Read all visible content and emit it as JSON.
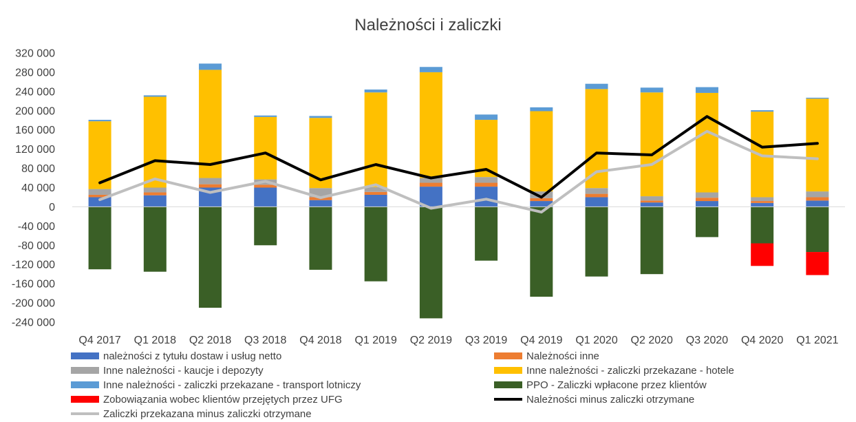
{
  "chart_data": {
    "type": "bar",
    "title": "Należności i zaliczki",
    "xlabel": "",
    "ylabel": "",
    "ylim": [
      -240000,
      320000
    ],
    "ytick_step": 40000,
    "y_tick_labels": [
      "320 000",
      "280 000",
      "240 000",
      "200 000",
      "160 000",
      "120 000",
      "80 000",
      "40 000",
      "0",
      "-40 000",
      "-80 000",
      "-120 000",
      "-160 000",
      "-200 000",
      "-240 000"
    ],
    "grid": false,
    "legend_position": "bottom",
    "categories": [
      "Q4 2017",
      "Q1 2018",
      "Q2 2018",
      "Q3 2018",
      "Q4 2018",
      "Q1 2019",
      "Q2 2019",
      "Q3 2019",
      "Q4 2019",
      "Q1 2020",
      "Q2 2020",
      "Q3 2020",
      "Q4 2020",
      "Q1 2021"
    ],
    "series": [
      {
        "name": "należności z tytułu dostaw i usług netto",
        "kind": "bar",
        "color": "#4472C4",
        "values": [
          20000,
          24000,
          40000,
          40000,
          14000,
          25000,
          42000,
          42000,
          12000,
          20000,
          9000,
          12000,
          8000,
          13000
        ]
      },
      {
        "name": "Należności inne",
        "kind": "bar",
        "color": "#ED7D31",
        "values": [
          5000,
          6000,
          7000,
          6000,
          6000,
          6000,
          8000,
          8000,
          6000,
          7000,
          4000,
          7000,
          4000,
          7000
        ]
      },
      {
        "name": "Inne należności - kaucje i depozyty",
        "kind": "bar",
        "color": "#A5A5A5",
        "values": [
          12000,
          10000,
          13000,
          11000,
          19000,
          10000,
          10000,
          12000,
          14000,
          12000,
          9000,
          11000,
          8000,
          12000
        ]
      },
      {
        "name": "Inne należności - zaliczki przekazane - hotele",
        "kind": "bar",
        "color": "#FFC000",
        "values": [
          141000,
          189000,
          225000,
          130000,
          146000,
          197000,
          220000,
          119000,
          167000,
          206000,
          216000,
          207000,
          178000,
          193000
        ]
      },
      {
        "name": "Inne należności - zaliczki przekazane - transport lotniczy",
        "kind": "bar",
        "color": "#5B9BD5",
        "values": [
          3000,
          3000,
          13000,
          3000,
          4000,
          6000,
          11000,
          11000,
          8000,
          11000,
          10000,
          12000,
          3000,
          2000
        ]
      },
      {
        "name": "PPO - Zaliczki wpłacone przez klientów",
        "kind": "bar",
        "color": "#3A5F26",
        "values": [
          -130000,
          -135000,
          -210000,
          -80000,
          -131000,
          -155000,
          -232000,
          -112000,
          -187000,
          -145000,
          -140000,
          -63000,
          -76000,
          -94000
        ]
      },
      {
        "name": "Zobowiązania wobec klientów przejętych przez UFG",
        "kind": "bar",
        "color": "#FF0000",
        "values": [
          0,
          0,
          0,
          0,
          0,
          0,
          0,
          0,
          0,
          0,
          0,
          0,
          -47000,
          -48000
        ]
      },
      {
        "name": "Należności minus zaliczki otrzymane",
        "kind": "line",
        "color": "#000000",
        "values": [
          50000,
          96000,
          88000,
          112000,
          56000,
          88000,
          60000,
          78000,
          20000,
          112000,
          108000,
          188000,
          124000,
          132000
        ]
      },
      {
        "name": "Zaliczki przekazana minus zaliczki otrzymane",
        "kind": "line",
        "color": "#BFBFBF",
        "values": [
          15000,
          58000,
          30000,
          53000,
          19000,
          46000,
          -3000,
          16000,
          -11000,
          73000,
          88000,
          157000,
          106000,
          100000
        ]
      }
    ]
  }
}
